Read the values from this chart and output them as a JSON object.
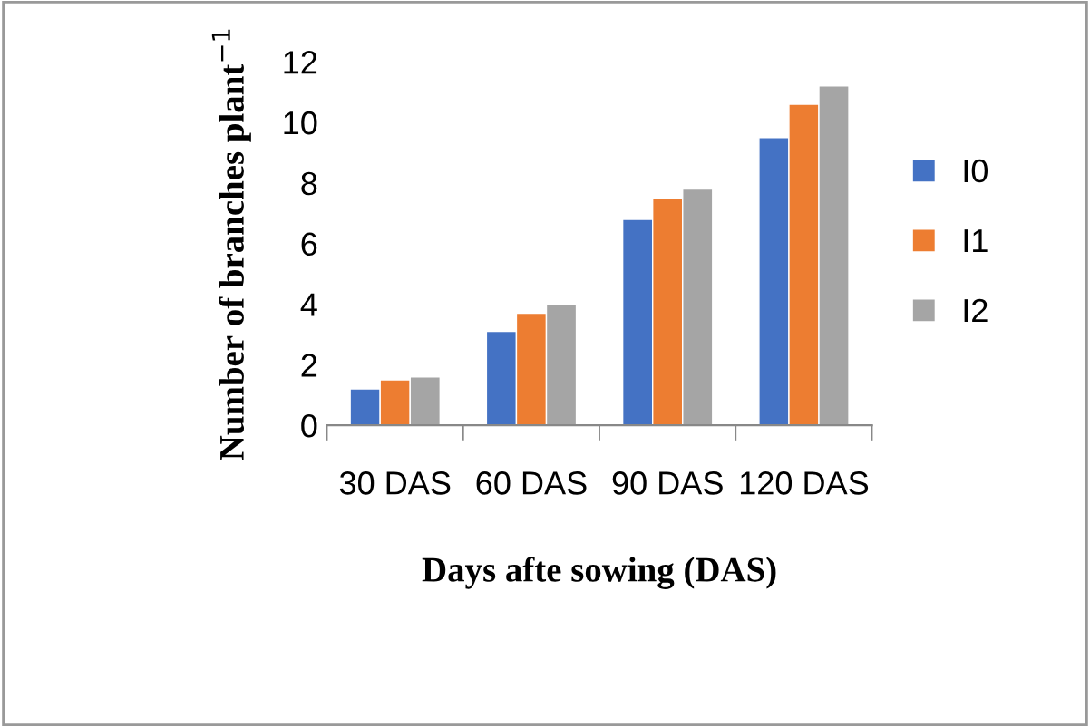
{
  "chart_data": {
    "type": "bar",
    "xlabel": "Days afte sowing (DAS)",
    "ylabel": "Number of branches plant$^{−1}$",
    "categories": [
      "30 DAS",
      "60 DAS",
      "90 DAS",
      "120 DAS"
    ],
    "series": [
      {
        "name": "I0",
        "color": "#4472c4",
        "values": [
          1.2,
          3.1,
          6.8,
          9.5
        ]
      },
      {
        "name": "I1",
        "color": "#ed7d31",
        "values": [
          1.5,
          3.7,
          7.5,
          10.6
        ]
      },
      {
        "name": "I2",
        "color": "#a5a5a5",
        "values": [
          1.6,
          4.0,
          7.8,
          11.2
        ]
      }
    ],
    "ylim": [
      0,
      12
    ],
    "yticks": [
      0,
      2,
      4,
      6,
      8,
      10,
      12
    ],
    "grid": false,
    "legend": "right"
  }
}
